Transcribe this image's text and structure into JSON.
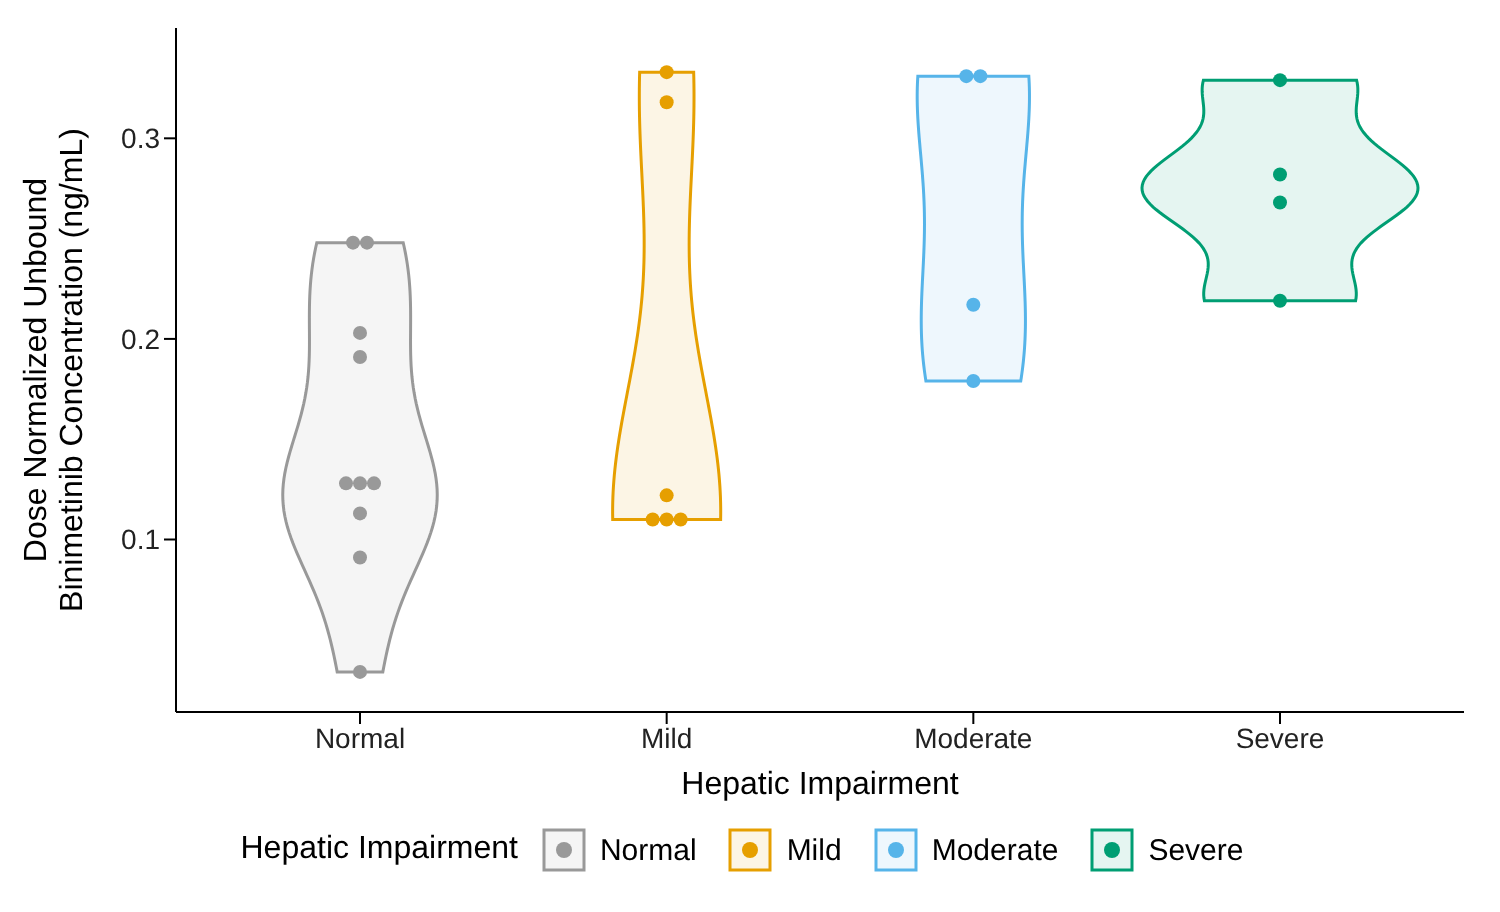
{
  "chart_data": {
    "type": "scatter",
    "xlabel": "Hepatic Impairment",
    "ylabel": "Dose Normalized Unbound Binimetinib Concentration (ng/mL)",
    "legend_title": "Hepatic Impairment",
    "categories": [
      "Normal",
      "Mild",
      "Moderate",
      "Severe"
    ],
    "series": [
      {
        "name": "Normal",
        "color": "#999999",
        "x": [
          "Normal",
          "Normal",
          "Normal",
          "Normal",
          "Normal",
          "Normal",
          "Normal",
          "Normal",
          "Normal",
          "Normal"
        ],
        "values": [
          0.248,
          0.248,
          0.203,
          0.191,
          0.128,
          0.128,
          0.128,
          0.113,
          0.091,
          0.034
        ]
      },
      {
        "name": "Mild",
        "color": "#e69f00",
        "x": [
          "Mild",
          "Mild",
          "Mild",
          "Mild",
          "Mild",
          "Mild"
        ],
        "values": [
          0.333,
          0.318,
          0.122,
          0.11,
          0.11,
          0.11
        ]
      },
      {
        "name": "Moderate",
        "color": "#56b4e9",
        "x": [
          "Moderate",
          "Moderate",
          "Moderate",
          "Moderate"
        ],
        "values": [
          0.331,
          0.331,
          0.217,
          0.179
        ]
      },
      {
        "name": "Severe",
        "color": "#009e73",
        "x": [
          "Severe",
          "Severe",
          "Severe",
          "Severe"
        ],
        "values": [
          0.329,
          0.282,
          0.268,
          0.219
        ]
      }
    ],
    "ylim": [
      0.014,
      0.355
    ],
    "yticks": [
      0.1,
      0.2,
      0.3
    ],
    "marker": "circle",
    "legend": "bottom"
  }
}
